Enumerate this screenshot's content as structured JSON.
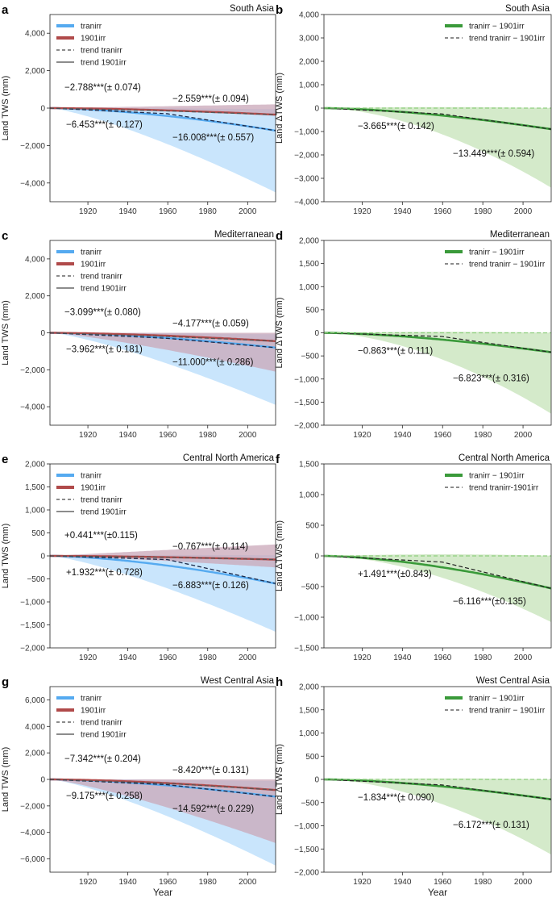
{
  "panels": [
    {
      "letter": "a",
      "title": "South Asia",
      "ylabel": "Land TWS (mm)",
      "kind": "tws",
      "ylim": [
        -5000,
        5000
      ],
      "yticks": [
        "-4,000",
        "-2,000",
        "0",
        "2,000",
        "4,000"
      ],
      "ytick_values": [
        -4000,
        -2000,
        0,
        2000,
        4000
      ],
      "legend": [
        "tranirr",
        "1901irr",
        "trend tranirr",
        "trend 1901irr"
      ],
      "annotations": [
        "-2.788***(± 0.074)",
        "-2.559***(± 0.094)",
        "-6.453***(± 0.127)",
        "-16.008***(± 0.557)"
      ],
      "series": {
        "blue_end": -1200,
        "blue_low": -4500,
        "red_end": -350,
        "red_low": -350,
        "red_high": 200,
        "bknee": -300,
        "rknee": -150
      }
    },
    {
      "letter": "b",
      "title": "South Asia",
      "ylabel": "Land ΔTWS (mm)",
      "kind": "dtws",
      "ylim": [
        -4000,
        4000
      ],
      "yticks": [
        "-4,000",
        "-3,000",
        "-2,000",
        "-1,000",
        "0",
        "1,000",
        "2,000",
        "3,000",
        "4,000"
      ],
      "ytick_values": [
        -4000,
        -3000,
        -2000,
        -1000,
        0,
        1000,
        2000,
        3000,
        4000
      ],
      "legend": [
        "tranirr − 1901irr",
        "trend tranirr − 1901irr"
      ],
      "annotations": [
        "-3.665***(± 0.142)",
        "-13.449***(± 0.594)"
      ],
      "series": {
        "green_end": -900,
        "green_low": -3400,
        "gknee": -250
      }
    },
    {
      "letter": "c",
      "title": "Mediterranean",
      "ylabel": "Land TWS (mm)",
      "kind": "tws",
      "ylim": [
        -5000,
        5000
      ],
      "yticks": [
        "-4,000",
        "-2,000",
        "0",
        "2,000",
        "4,000"
      ],
      "ytick_values": [
        -4000,
        -2000,
        0,
        2000,
        4000
      ],
      "legend": [
        "tranirr",
        "1901irr",
        "trend tranirr",
        "trend 1901irr"
      ],
      "annotations": [
        "-3.099***(± 0.080)",
        "-4.177***(± 0.059)",
        "-3.962***(± 0.181)",
        "-11.000***(± 0.286)"
      ],
      "series": {
        "blue_end": -800,
        "blue_low": -3900,
        "red_end": -450,
        "red_low": -2100,
        "red_high": 0,
        "bknee": -300,
        "rknee": -200
      }
    },
    {
      "letter": "d",
      "title": "Mediterranean",
      "ylabel": "Land ΔTWS (mm)",
      "kind": "dtws",
      "ylim": [
        -2000,
        2000
      ],
      "yticks": [
        "-2,000",
        "-1,500",
        "-1,000",
        "-500",
        "0",
        "500",
        "1,000",
        "1,500",
        "2,000"
      ],
      "ytick_values": [
        -2000,
        -1500,
        -1000,
        -500,
        0,
        500,
        1000,
        1500,
        2000
      ],
      "legend": [
        "tranirr − 1901irr",
        "trend tranirr − 1901irr"
      ],
      "annotations": [
        "-0.863***(± 0.111)",
        "-6.823***(± 0.316)"
      ],
      "series": {
        "green_end": -420,
        "green_low": -1750,
        "gknee": -80
      }
    },
    {
      "letter": "e",
      "title": "Central North America",
      "ylabel": "Land TWS (mm)",
      "kind": "tws",
      "ylim": [
        -2000,
        2000
      ],
      "yticks": [
        "-2,000",
        "-1,500",
        "-1,000",
        "-500",
        "0",
        "500",
        "1,000",
        "1,500",
        "2,000"
      ],
      "ytick_values": [
        -2000,
        -1500,
        -1000,
        -500,
        0,
        500,
        1000,
        1500,
        2000
      ],
      "legend": [
        "tranirr",
        "1901irr",
        "trend tranirr",
        "trend 1901irr"
      ],
      "annotations": [
        "+0.441***(±0.115)",
        "-0.767***(± 0.114)",
        "+1.932***(± 0.728)",
        "-6.883***(± 0.126)"
      ],
      "series": {
        "blue_end": -600,
        "blue_low": -1650,
        "red_end": -80,
        "red_low": -250,
        "red_high": 250,
        "bknee": -80,
        "rknee": -30
      }
    },
    {
      "letter": "f",
      "title": "Central North America",
      "ylabel": "Land ΔTWS (mm)",
      "kind": "dtws",
      "ylim": [
        -1500,
        1500
      ],
      "yticks": [
        "-1,500",
        "-1,000",
        "-500",
        "0",
        "500",
        "1,000",
        "1,500"
      ],
      "ytick_values": [
        -1500,
        -1000,
        -500,
        0,
        500,
        1000,
        1500
      ],
      "legend": [
        "tranirr − 1901irr",
        "trend tranirr-1901irr"
      ],
      "annotations": [
        "+1.491***(±0.843)",
        "-6.116***(±0.135)"
      ],
      "series": {
        "green_end": -530,
        "green_low": -1080,
        "gknee": -100
      }
    },
    {
      "letter": "g",
      "title": "West Central Asia",
      "ylabel": "Land TWS (mm)",
      "kind": "tws",
      "ylim": [
        -7000,
        7000
      ],
      "yticks": [
        "-6,000",
        "-4,000",
        "-2,000",
        "0",
        "2,000",
        "4,000",
        "6,000"
      ],
      "ytick_values": [
        -6000,
        -4000,
        -2000,
        0,
        2000,
        4000,
        6000
      ],
      "legend": [
        "tranirr",
        "1901irr",
        "trend tranirr",
        "trend 1901irr"
      ],
      "annotations": [
        "-7.342***(± 0.204)",
        "-8.420***(± 0.131)",
        "-9.175***(± 0.258)",
        "-14.592***(± 0.229)"
      ],
      "series": {
        "blue_end": -1300,
        "blue_low": -6500,
        "red_end": -800,
        "red_low": -4800,
        "red_high": 0,
        "bknee": -400,
        "rknee": -300
      }
    },
    {
      "letter": "h",
      "title": "West Central Asia",
      "ylabel": "Land ΔTWS (mm)",
      "kind": "dtws",
      "ylim": [
        -2000,
        2000
      ],
      "yticks": [
        "-2,000",
        "-1,500",
        "-1,000",
        "-500",
        "0",
        "500",
        "1,000",
        "1,500",
        "2,000"
      ],
      "ytick_values": [
        -2000,
        -1500,
        -1000,
        -500,
        0,
        500,
        1000,
        1500,
        2000
      ],
      "legend": [
        "tranirr − 1901irr",
        "trend tranirr − 1901irr"
      ],
      "annotations": [
        "-1.834***(± 0.090)",
        "-6.172***(± 0.131)"
      ],
      "series": {
        "green_end": -430,
        "green_low": -1620,
        "gknee": -120
      }
    }
  ],
  "chart_data": {
    "type": "line",
    "xlim": [
      1901,
      2014
    ],
    "xticks": [
      "1920",
      "1940",
      "1960",
      "1980",
      "2000"
    ],
    "xtick_values": [
      1920,
      1940,
      1960,
      1980,
      2000
    ],
    "xlabel": "Year",
    "colors": {
      "tranirr": "#55aaf0",
      "i1901": "#b04a4a",
      "diff": "#3a9a3a",
      "trend": "#666666",
      "band_blue": "#bfe0fb",
      "band_red": "#c9a7b8",
      "band_green": "#cfe8c4"
    }
  }
}
